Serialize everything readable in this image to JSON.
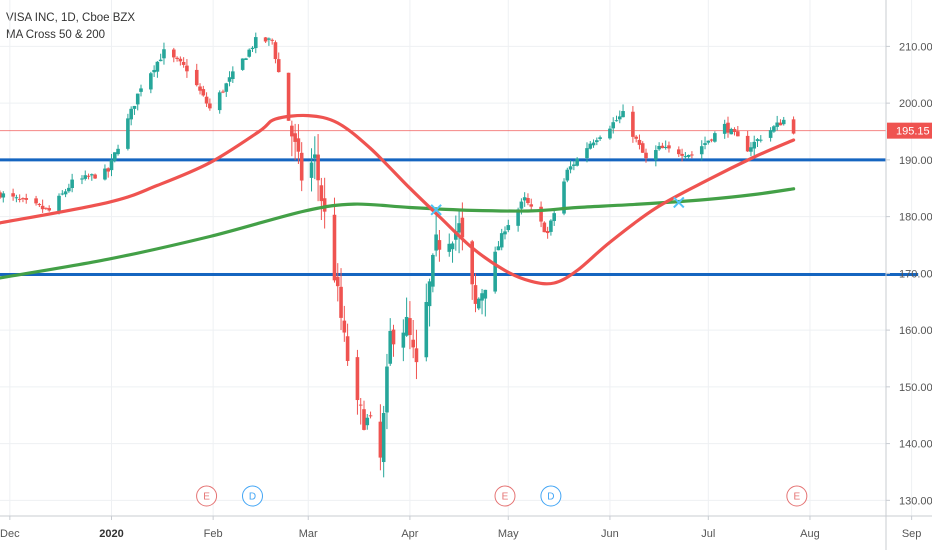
{
  "legend": {
    "symbol_line": "VISA INC, 1D, Cboe BZX",
    "indicator_line": "MA Cross 50 & 200"
  },
  "colors": {
    "up": "#26a69a",
    "down": "#ef5350",
    "ma50": "#ef5350",
    "ma200": "#43a047",
    "support": "#1565c0",
    "last_price": "#ef5350",
    "cross": "#4fc3f7",
    "earnings": "#e57373",
    "dividend": "#42a5f5"
  },
  "chart_data": {
    "type": "candlestick",
    "title": "VISA INC, 1D, Cboe BZX",
    "indicator": "MA Cross 50 & 200",
    "y_ticks": [
      130,
      140,
      150,
      160,
      170,
      180,
      190,
      200,
      210
    ],
    "y_tick_labels": [
      "130.00",
      "140.00",
      "150.00",
      "160.00",
      "170.00",
      "180.00",
      "190.00",
      "200.00",
      "210.00"
    ],
    "ylim": [
      129,
      218
    ],
    "grid": true,
    "last_price": 195.15,
    "last_price_label": "195.15",
    "x_ticks": [
      {
        "date": "2019-12-01",
        "label": "Dec",
        "bold": false
      },
      {
        "date": "2020-01-01",
        "label": "2020",
        "bold": true
      },
      {
        "date": "2020-02-01",
        "label": "Feb",
        "bold": false
      },
      {
        "date": "2020-03-01",
        "label": "Mar",
        "bold": false
      },
      {
        "date": "2020-04-01",
        "label": "Apr",
        "bold": false
      },
      {
        "date": "2020-05-01",
        "label": "May",
        "bold": false
      },
      {
        "date": "2020-06-01",
        "label": "Jun",
        "bold": false
      },
      {
        "date": "2020-07-01",
        "label": "Jul",
        "bold": false
      },
      {
        "date": "2020-08-01",
        "label": "Aug",
        "bold": false
      },
      {
        "date": "2020-09-01",
        "label": "Sep",
        "bold": false
      }
    ],
    "xlim": [
      "2019-11-28",
      "2020-10-01"
    ],
    "horizontal_lines": [
      {
        "price": 190,
        "start": "2019-11-28",
        "end": "2020-08-24"
      },
      {
        "price": 169.8,
        "start": "2019-11-28",
        "end": "2020-09-03"
      }
    ],
    "close_checkpoints": [
      [
        "2019-11-28",
        184
      ],
      [
        "2019-12-13",
        181
      ],
      [
        "2019-12-20",
        186
      ],
      [
        "2019-12-31",
        188
      ],
      [
        "2020-01-10",
        203
      ],
      [
        "2020-01-17",
        209
      ],
      [
        "2020-01-24",
        206
      ],
      [
        "2020-01-31",
        199
      ],
      [
        "2020-02-07",
        205
      ],
      [
        "2020-02-14",
        211
      ],
      [
        "2020-02-19",
        211
      ],
      [
        "2020-02-24",
        197
      ],
      [
        "2020-02-28",
        187
      ],
      [
        "2020-03-03",
        190
      ],
      [
        "2020-03-09",
        170
      ],
      [
        "2020-03-12",
        158
      ],
      [
        "2020-03-16",
        146
      ],
      [
        "2020-03-20",
        143
      ],
      [
        "2020-03-23",
        137
      ],
      [
        "2020-03-26",
        159
      ],
      [
        "2020-03-31",
        161
      ],
      [
        "2020-04-03",
        153
      ],
      [
        "2020-04-09",
        175
      ],
      [
        "2020-04-16",
        178
      ],
      [
        "2020-04-21",
        164
      ],
      [
        "2020-04-30",
        178
      ],
      [
        "2020-05-06",
        183
      ],
      [
        "2020-05-13",
        177
      ],
      [
        "2020-05-19",
        188
      ],
      [
        "2020-05-26",
        193
      ],
      [
        "2020-06-05",
        198
      ],
      [
        "2020-06-12",
        190
      ],
      [
        "2020-06-16",
        192
      ],
      [
        "2020-06-26",
        191
      ],
      [
        "2020-07-06",
        196
      ],
      [
        "2020-07-13",
        192
      ],
      [
        "2020-07-17",
        194
      ],
      [
        "2020-07-24",
        197
      ],
      [
        "2020-07-27",
        195.2
      ]
    ],
    "ma50": [
      [
        "2019-11-28",
        178.9
      ],
      [
        "2019-12-31",
        182.5
      ],
      [
        "2020-01-15",
        185.5
      ],
      [
        "2020-01-31",
        189.5
      ],
      [
        "2020-02-15",
        195
      ],
      [
        "2020-02-20",
        197.2
      ],
      [
        "2020-03-01",
        197.8
      ],
      [
        "2020-03-10",
        196.5
      ],
      [
        "2020-03-20",
        192
      ],
      [
        "2020-04-01",
        185
      ],
      [
        "2020-04-10",
        180
      ],
      [
        "2020-04-20",
        174.5
      ],
      [
        "2020-04-30",
        170.5
      ],
      [
        "2020-05-08",
        168.6
      ],
      [
        "2020-05-15",
        168.3
      ],
      [
        "2020-05-22",
        170.5
      ],
      [
        "2020-06-01",
        175.5
      ],
      [
        "2020-06-15",
        181.5
      ],
      [
        "2020-07-01",
        186.5
      ],
      [
        "2020-07-15",
        190.5
      ],
      [
        "2020-07-27",
        193.5
      ]
    ],
    "ma200": [
      [
        "2019-11-28",
        169.2
      ],
      [
        "2019-12-31",
        172.5
      ],
      [
        "2020-01-31",
        176.5
      ],
      [
        "2020-02-29",
        181
      ],
      [
        "2020-03-15",
        182.2
      ],
      [
        "2020-04-01",
        181.6
      ],
      [
        "2020-04-20",
        181.1
      ],
      [
        "2020-05-08",
        181
      ],
      [
        "2020-05-22",
        181.6
      ],
      [
        "2020-06-10",
        182.2
      ],
      [
        "2020-06-30",
        183
      ],
      [
        "2020-07-15",
        183.9
      ],
      [
        "2020-07-27",
        184.9
      ]
    ],
    "ma_crosses": [
      {
        "date": "2020-04-09",
        "price": 181.2
      },
      {
        "date": "2020-06-22",
        "price": 182.5
      }
    ],
    "events": [
      {
        "date": "2020-01-30",
        "label": "E",
        "kind": "earnings"
      },
      {
        "date": "2020-02-13",
        "label": "D",
        "kind": "dividend"
      },
      {
        "date": "2020-04-30",
        "label": "E",
        "kind": "earnings"
      },
      {
        "date": "2020-05-14",
        "label": "D",
        "kind": "dividend"
      },
      {
        "date": "2020-07-28",
        "label": "E",
        "kind": "earnings"
      }
    ]
  }
}
